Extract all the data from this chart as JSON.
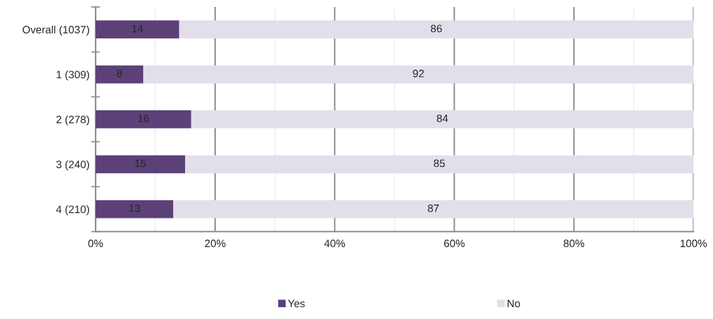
{
  "chart_data": {
    "type": "bar",
    "orientation": "horizontal",
    "stacked": true,
    "categories": [
      "Overall (1037)",
      "1 (309)",
      "2 (278)",
      "3 (240)",
      "4 (210)"
    ],
    "series": [
      {
        "name": "Yes",
        "color": "#5c4178",
        "values": [
          14,
          8,
          16,
          15,
          13
        ]
      },
      {
        "name": "No",
        "color": "#e3dfea",
        "values": [
          86,
          92,
          84,
          85,
          87
        ]
      }
    ],
    "xlim": [
      0,
      100
    ],
    "xticks": [
      {
        "value": 0,
        "label": "0%"
      },
      {
        "value": 10,
        "label": null
      },
      {
        "value": 20,
        "label": "20%"
      },
      {
        "value": 30,
        "label": null
      },
      {
        "value": 40,
        "label": "40%"
      },
      {
        "value": 50,
        "label": null
      },
      {
        "value": 60,
        "label": "60%"
      },
      {
        "value": 70,
        "label": null
      },
      {
        "value": 80,
        "label": "80%"
      },
      {
        "value": 90,
        "label": null
      },
      {
        "value": 100,
        "label": "100%"
      }
    ],
    "grid": "x",
    "legend": "bottom",
    "data_labels": true
  }
}
